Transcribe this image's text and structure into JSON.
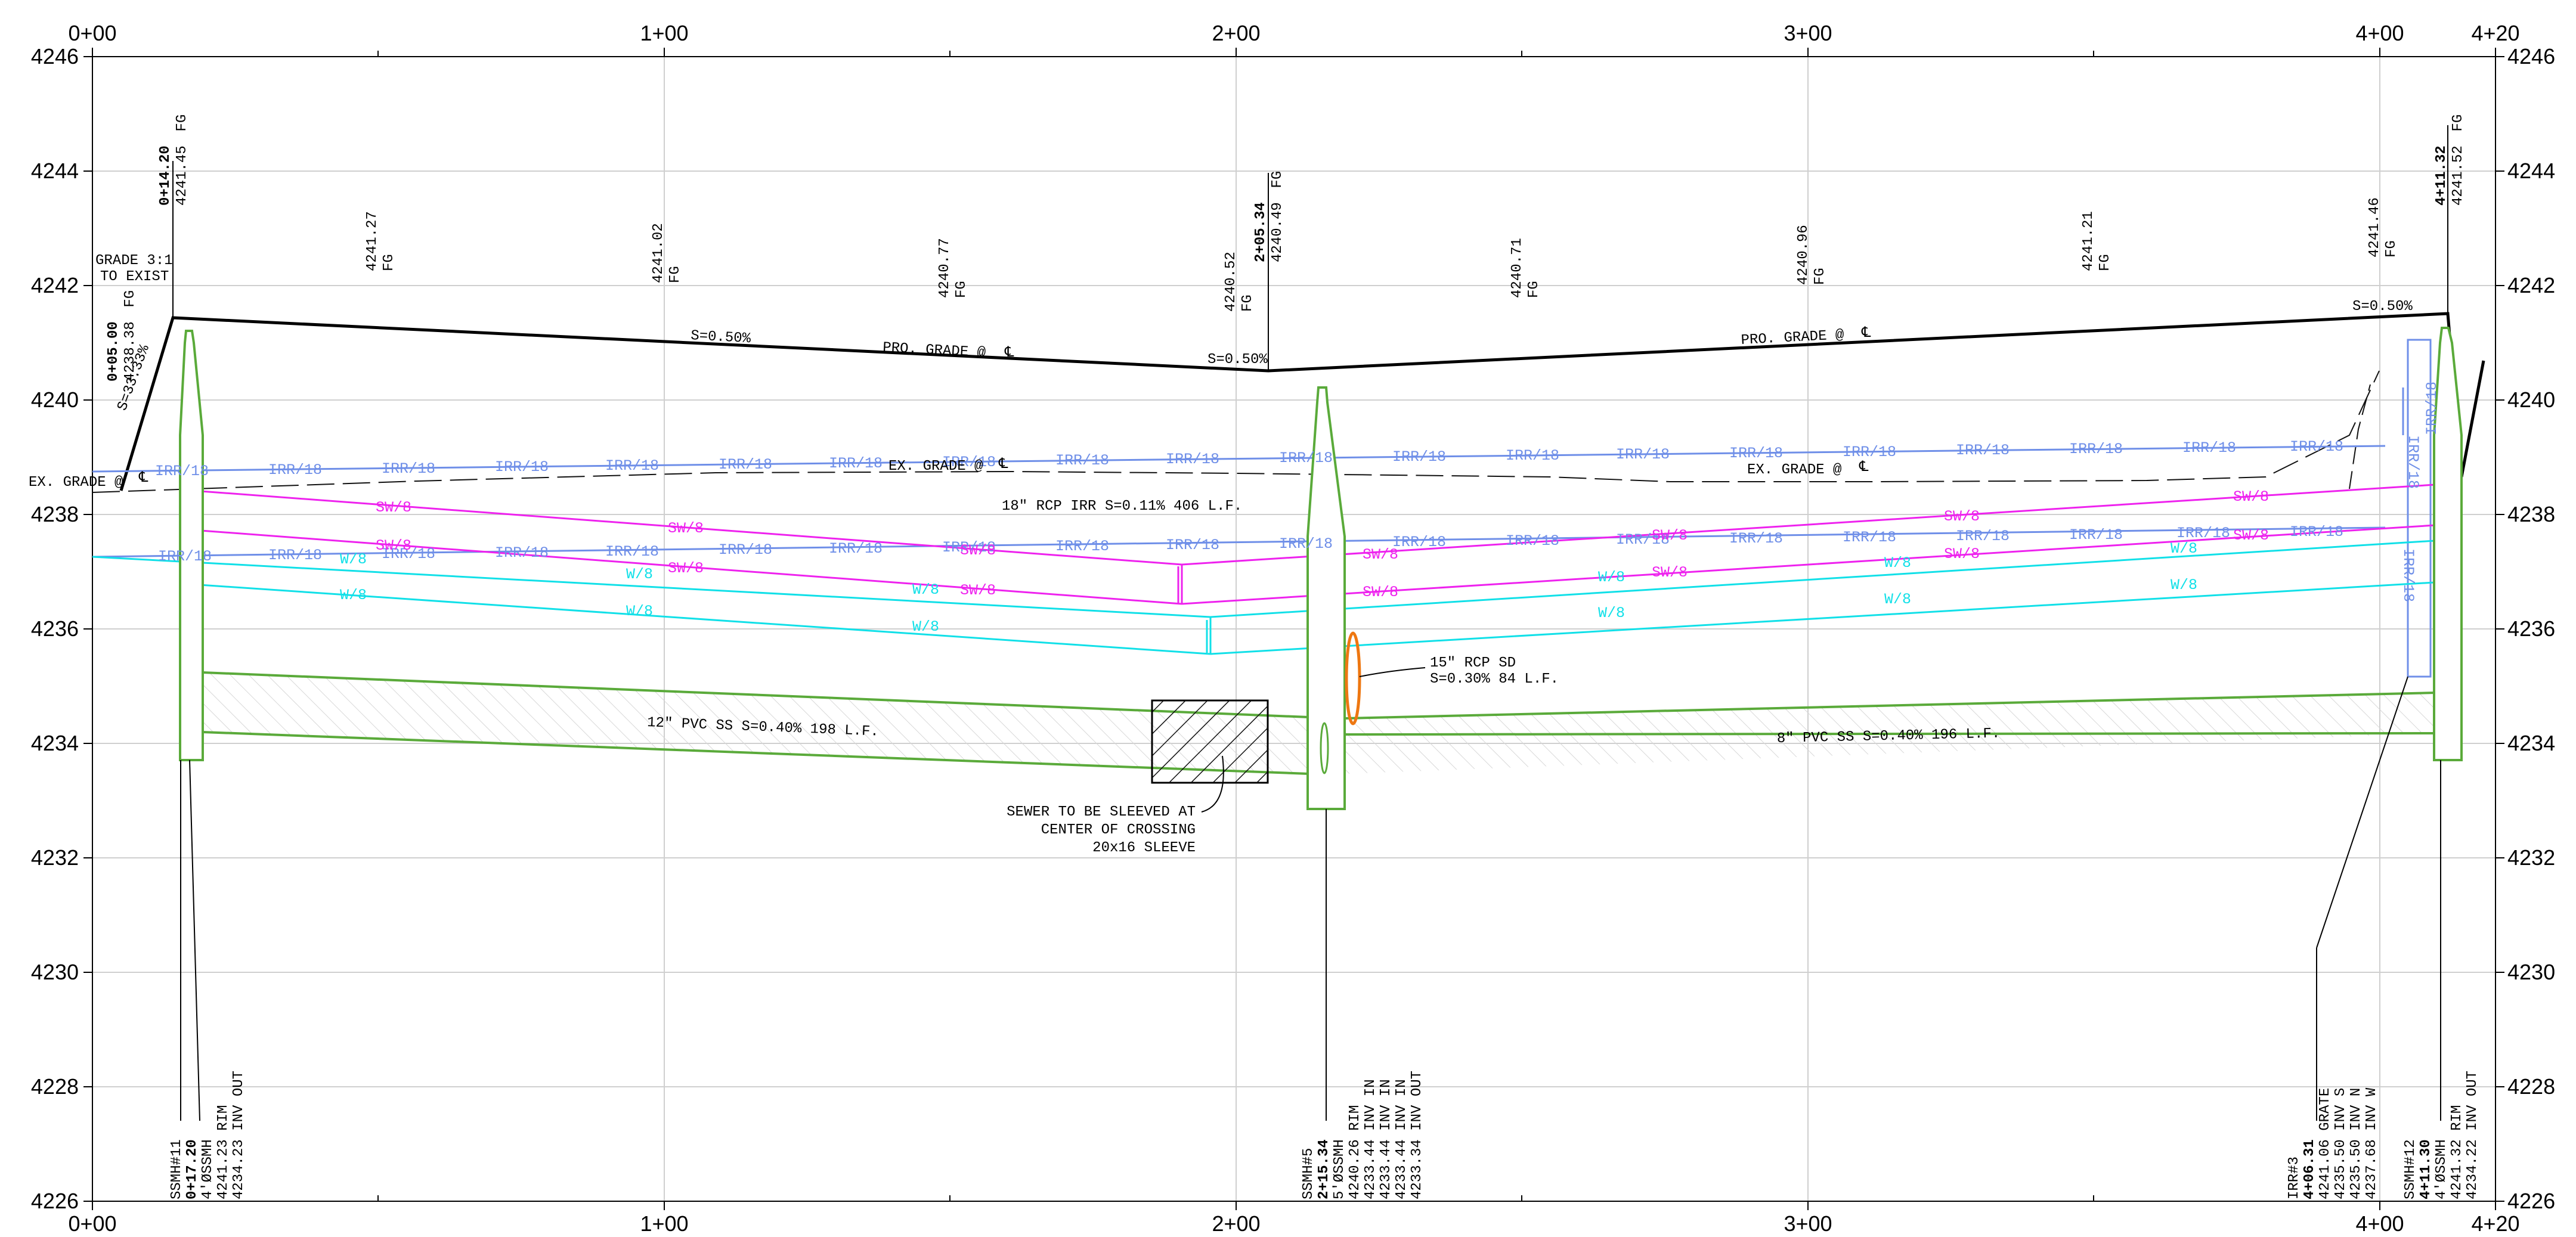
{
  "stations": [
    "0+00",
    "1+00",
    "2+00",
    "3+00",
    "4+00",
    "4+20"
  ],
  "elevations": [
    "4246",
    "4244",
    "4242",
    "4240",
    "4238",
    "4236",
    "4234",
    "4232",
    "4230",
    "4228",
    "4226"
  ],
  "colors": {
    "irr": "#6f8fe8",
    "sw": "#ee22ee",
    "w": "#11e0e8",
    "ss": "#5aaa3a",
    "sd": "#ee7711",
    "grade": "#000000"
  },
  "top_labels": {
    "l0_5": [
      "0+05.00",
      "4238.38",
      "FG"
    ],
    "l14": [
      "0+14.20",
      "4241.45",
      "FG"
    ],
    "l50": [
      "4241.27",
      "FG"
    ],
    "l100": [
      "4241.02",
      "FG"
    ],
    "l150": [
      "4240.77",
      "FG"
    ],
    "l200": [
      "4240.52",
      "FG"
    ],
    "l205": [
      "2+05.34",
      "4240.49",
      "FG"
    ],
    "l250": [
      "4240.71",
      "FG"
    ],
    "l300": [
      "4240.96",
      "FG"
    ],
    "l350": [
      "4241.21",
      "FG"
    ],
    "l400": [
      "4241.46",
      "FG"
    ],
    "l411": [
      "4+11.32",
      "4241.52",
      "FG"
    ]
  },
  "notes": {
    "grade_3_1": "GRADE 3:1",
    "to_exist": "TO EXIST",
    "slope_33": "S=33.33%",
    "s050_a": "S=0.50%",
    "s050_b": "S=0.50%",
    "s050_c": "S=0.50%",
    "pro_grade_a": "PRO. GRADE @",
    "pro_grade_b": "PRO. GRADE @",
    "ex_grade_a": "EX. GRADE @",
    "ex_grade_b": "EX. GRADE @",
    "ex_grade_c": "EX. GRADE @",
    "cl": "℄",
    "rcp18": "18\" RCP IRR S=0.11% 406 L.F.",
    "pvc12": "12\" PVC SS S=0.40% 198 L.F.",
    "pvc8": "8\" PVC SS S=0.40% 196 L.F.",
    "rcp15_a": "15\" RCP SD",
    "rcp15_b": "S=0.30% 84 L.F.",
    "sleeve_a": "SEWER TO BE SLEEVED AT",
    "sleeve_b": "CENTER OF CROSSING",
    "sleeve_c": "20x16 SLEEVE"
  },
  "utility_labels": {
    "irr": "IRR/18",
    "sw": "SW/8",
    "w": "W/8"
  },
  "bottom_labels": {
    "ssmh11": [
      "SSMH#11",
      "0+17.20",
      "4'ØSSMH",
      "4241.23  RIM",
      "4234.23  INV OUT"
    ],
    "ssmh5": [
      "SSMH#5",
      "2+15.34",
      "5'ØSSMH",
      "4240.26  RIM",
      "4233.44  INV IN",
      "4233.44  INV IN",
      "4233.44  INV IN",
      "4233.34  INV OUT"
    ],
    "irr3": [
      "IRR#3",
      "4+06.31",
      "4241.06  GRATE",
      "4235.50  INV S",
      "4235.50  INV N",
      "4237.68  INV W"
    ],
    "ssmh12": [
      "SSMH#12",
      "4+11.30",
      "4'ØSSMH",
      "4241.32  RIM",
      "4234.22  INV OUT"
    ]
  }
}
